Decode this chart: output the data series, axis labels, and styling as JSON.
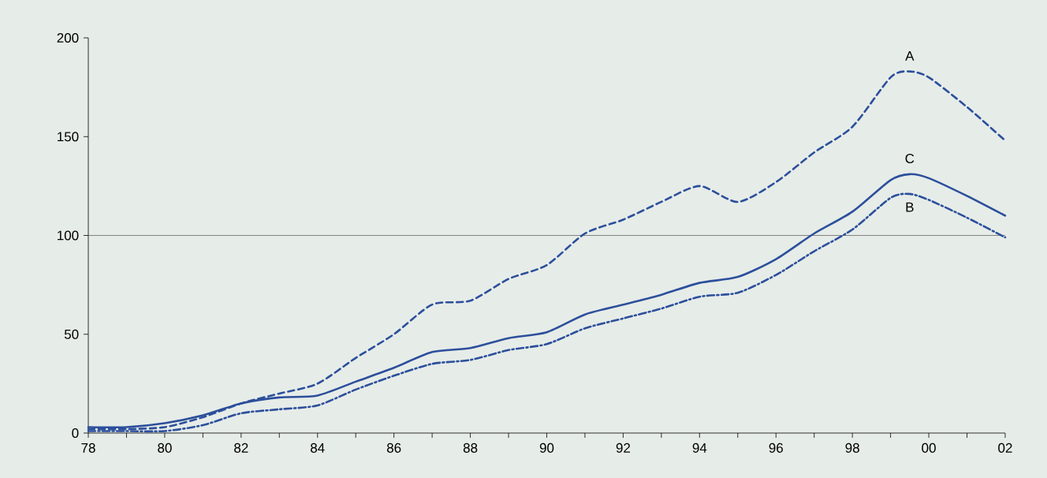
{
  "chart_data": {
    "type": "line",
    "x": [
      "1978",
      "1979",
      "1980",
      "1981",
      "1982",
      "1983",
      "1984",
      "1985",
      "1986",
      "1987",
      "1988",
      "1989",
      "1990",
      "1991",
      "1992",
      "1993",
      "1994",
      "1995",
      "1996",
      "1997",
      "1998",
      "1999",
      "1999-07",
      "2000",
      "2001",
      "2002"
    ],
    "series": [
      {
        "name": "A",
        "color": "#2c4f9c",
        "line_style": "dashed",
        "values": [
          2,
          2,
          3,
          8,
          15,
          20,
          25,
          38,
          50,
          65,
          67,
          78,
          85,
          101,
          108,
          117,
          125,
          117,
          127,
          142,
          155,
          180,
          183,
          180,
          165,
          148
        ]
      },
      {
        "name": "C",
        "color": "#2c4f9c",
        "line_style": "solid",
        "values": [
          3,
          3,
          5,
          9,
          15,
          18,
          19,
          26,
          33,
          41,
          43,
          48,
          51,
          60,
          65,
          70,
          76,
          79,
          88,
          101,
          112,
          128,
          131,
          129,
          120,
          110
        ]
      },
      {
        "name": "B",
        "color": "#2c4f9c",
        "line_style": "dashdot",
        "values": [
          1,
          1,
          1,
          4,
          10,
          12,
          14,
          22,
          29,
          35,
          37,
          42,
          45,
          53,
          58,
          63,
          69,
          71,
          80,
          92,
          103,
          119,
          121,
          118,
          109,
          99
        ]
      }
    ],
    "xlim": [
      "1978",
      "2002"
    ],
    "ylim": [
      0,
      200
    ],
    "xticks": [
      {
        "value": "1978",
        "label": "78"
      },
      {
        "value": "1979",
        "label": null
      },
      {
        "value": "1980",
        "label": "80"
      },
      {
        "value": "1981",
        "label": null
      },
      {
        "value": "1982",
        "label": "82"
      },
      {
        "value": "1983",
        "label": null
      },
      {
        "value": "1984",
        "label": "84"
      },
      {
        "value": "1985",
        "label": null
      },
      {
        "value": "1986",
        "label": "86"
      },
      {
        "value": "1987",
        "label": null
      },
      {
        "value": "1988",
        "label": "88"
      },
      {
        "value": "1989",
        "label": null
      },
      {
        "value": "1990",
        "label": "90"
      },
      {
        "value": "1991",
        "label": null
      },
      {
        "value": "1992",
        "label": "92"
      },
      {
        "value": "1993",
        "label": null
      },
      {
        "value": "1994",
        "label": "94"
      },
      {
        "value": "1995",
        "label": null
      },
      {
        "value": "1996",
        "label": "96"
      },
      {
        "value": "1997",
        "label": null
      },
      {
        "value": "1998",
        "label": "98"
      },
      {
        "value": "1999",
        "label": null
      },
      {
        "value": "2000",
        "label": "00"
      },
      {
        "value": "2001",
        "label": null
      },
      {
        "value": "2002",
        "label": "02"
      }
    ],
    "yticks": [
      0,
      50,
      100,
      150,
      200
    ],
    "ref_lines": [
      {
        "axis": "y",
        "value": 100,
        "color": "#555555"
      }
    ]
  }
}
